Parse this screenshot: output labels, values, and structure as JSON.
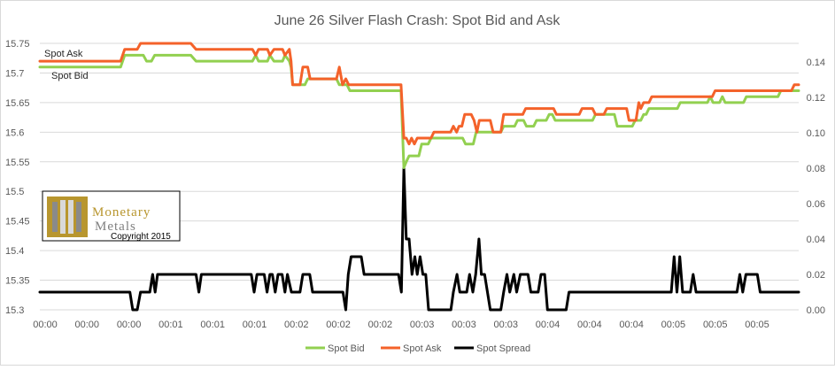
{
  "chart_data": {
    "type": "line",
    "title": "June 26 Silver Flash Crash: Spot Bid and Ask",
    "xlabel": "",
    "ylabel": "",
    "x_tick_labels": [
      "00:00",
      "00:00",
      "00:00",
      "00:01",
      "00:01",
      "00:01",
      "00:02",
      "00:02",
      "00:02",
      "00:03",
      "00:03",
      "00:03",
      "00:04",
      "00:04",
      "00:04",
      "00:05",
      "00:05",
      "00:05"
    ],
    "ylim_left": [
      15.3,
      15.75
    ],
    "yticks_left": [
      "15.3",
      "15.35",
      "15.4",
      "15.45",
      "15.5",
      "15.55",
      "15.6",
      "15.65",
      "15.7",
      "15.75"
    ],
    "ylim_right": [
      0,
      0.15
    ],
    "yticks_right": [
      "0.00",
      "0.02",
      "0.04",
      "0.06",
      "0.08",
      "0.10",
      "0.12",
      "0.14"
    ],
    "grid": true,
    "legend_position": "bottom",
    "annotations": [
      "Spot Ask",
      "Spot Bid"
    ],
    "watermark": {
      "line1": "Monetary",
      "line2": "Metals",
      "copyright": "Copyright 2015"
    },
    "series": [
      {
        "name": "Spot Bid",
        "axis": "left",
        "color": "#92d050",
        "points": [
          [
            0,
            15.71
          ],
          [
            19.9,
            15.71
          ],
          [
            20.9,
            15.73
          ],
          [
            25.5,
            15.73
          ],
          [
            26.3,
            15.72
          ],
          [
            27.5,
            15.72
          ],
          [
            28.3,
            15.73
          ],
          [
            37.2,
            15.73
          ],
          [
            38.5,
            15.72
          ],
          [
            52.4,
            15.72
          ],
          [
            53.2,
            15.73
          ],
          [
            53.9,
            15.72
          ],
          [
            56.1,
            15.72
          ],
          [
            56.7,
            15.73
          ],
          [
            57.7,
            15.72
          ],
          [
            59.8,
            15.72
          ],
          [
            60.4,
            15.73
          ],
          [
            61.5,
            15.72
          ],
          [
            61.9,
            15.71
          ],
          [
            62.3,
            15.68
          ],
          [
            65.3,
            15.68
          ],
          [
            66.0,
            15.69
          ],
          [
            73.1,
            15.69
          ],
          [
            73.8,
            15.68
          ],
          [
            75.7,
            15.68
          ],
          [
            76.4,
            15.67
          ],
          [
            89.0,
            15.67
          ],
          [
            89.7,
            15.54
          ],
          [
            90.3,
            15.55
          ],
          [
            91.0,
            15.56
          ],
          [
            93.4,
            15.56
          ],
          [
            94.1,
            15.58
          ],
          [
            95.7,
            15.58
          ],
          [
            96.4,
            15.59
          ],
          [
            104.2,
            15.59
          ],
          [
            104.9,
            15.58
          ],
          [
            106.8,
            15.58
          ],
          [
            107.5,
            15.6
          ],
          [
            113.6,
            15.6
          ],
          [
            114.3,
            15.61
          ],
          [
            117.0,
            15.61
          ],
          [
            117.7,
            15.62
          ],
          [
            119.2,
            15.62
          ],
          [
            119.9,
            15.61
          ],
          [
            121.7,
            15.61
          ],
          [
            122.4,
            15.62
          ],
          [
            124.8,
            15.62
          ],
          [
            125.5,
            15.63
          ],
          [
            126.3,
            15.63
          ],
          [
            127.0,
            15.62
          ],
          [
            136.2,
            15.62
          ],
          [
            136.9,
            15.63
          ],
          [
            141.6,
            15.63
          ],
          [
            142.3,
            15.61
          ],
          [
            146.0,
            15.61
          ],
          [
            146.7,
            15.62
          ],
          [
            148.1,
            15.62
          ],
          [
            148.8,
            15.63
          ],
          [
            149.4,
            15.63
          ],
          [
            150.1,
            15.64
          ],
          [
            157.1,
            15.64
          ],
          [
            157.8,
            15.65
          ],
          [
            164.5,
            15.65
          ],
          [
            165.2,
            15.66
          ],
          [
            165.9,
            15.65
          ],
          [
            167.5,
            15.65
          ],
          [
            168.2,
            15.66
          ],
          [
            168.9,
            15.65
          ],
          [
            173.4,
            15.65
          ],
          [
            174.1,
            15.66
          ],
          [
            181.9,
            15.66
          ],
          [
            182.6,
            15.67
          ],
          [
            187,
            15.67
          ]
        ]
      },
      {
        "name": "Spot Ask",
        "axis": "left",
        "color": "#f4622a",
        "points": [
          [
            0,
            15.72
          ],
          [
            19.9,
            15.72
          ],
          [
            20.9,
            15.74
          ],
          [
            24.0,
            15.74
          ],
          [
            24.8,
            15.75
          ],
          [
            37.2,
            15.75
          ],
          [
            38.5,
            15.74
          ],
          [
            52.4,
            15.74
          ],
          [
            53.2,
            15.73
          ],
          [
            53.9,
            15.74
          ],
          [
            56.1,
            15.74
          ],
          [
            56.7,
            15.73
          ],
          [
            57.7,
            15.74
          ],
          [
            59.8,
            15.74
          ],
          [
            60.4,
            15.73
          ],
          [
            61.5,
            15.74
          ],
          [
            61.9,
            15.72
          ],
          [
            62.3,
            15.68
          ],
          [
            64.1,
            15.68
          ],
          [
            64.8,
            15.71
          ],
          [
            66.0,
            15.71
          ],
          [
            66.6,
            15.69
          ],
          [
            73.1,
            15.69
          ],
          [
            73.8,
            15.71
          ],
          [
            74.6,
            15.68
          ],
          [
            75.4,
            15.69
          ],
          [
            76.1,
            15.68
          ],
          [
            89.0,
            15.68
          ],
          [
            89.7,
            15.59
          ],
          [
            90.3,
            15.59
          ],
          [
            91.0,
            15.58
          ],
          [
            91.6,
            15.59
          ],
          [
            92.3,
            15.58
          ],
          [
            93.0,
            15.59
          ],
          [
            96.4,
            15.59
          ],
          [
            97.1,
            15.6
          ],
          [
            101.2,
            15.6
          ],
          [
            101.9,
            15.61
          ],
          [
            102.7,
            15.6
          ],
          [
            103.3,
            15.61
          ],
          [
            104.0,
            15.61
          ],
          [
            104.7,
            15.63
          ],
          [
            106.3,
            15.63
          ],
          [
            107.0,
            15.62
          ],
          [
            107.7,
            15.6
          ],
          [
            108.3,
            15.62
          ],
          [
            111.0,
            15.62
          ],
          [
            111.7,
            15.6
          ],
          [
            113.6,
            15.6
          ],
          [
            114.3,
            15.63
          ],
          [
            119.0,
            15.63
          ],
          [
            119.7,
            15.64
          ],
          [
            126.6,
            15.64
          ],
          [
            127.3,
            15.63
          ],
          [
            132.9,
            15.63
          ],
          [
            133.6,
            15.64
          ],
          [
            136.2,
            15.64
          ],
          [
            136.9,
            15.63
          ],
          [
            139.0,
            15.63
          ],
          [
            139.7,
            15.64
          ],
          [
            143.9,
            15.64
          ],
          [
            144.6,
            15.64
          ],
          [
            145.2,
            15.62
          ],
          [
            146.9,
            15.62
          ],
          [
            147.6,
            15.65
          ],
          [
            148.1,
            15.64
          ],
          [
            148.8,
            15.65
          ],
          [
            150.1,
            15.65
          ],
          [
            150.8,
            15.66
          ],
          [
            165.7,
            15.66
          ],
          [
            166.4,
            15.67
          ],
          [
            185.2,
            15.67
          ],
          [
            185.9,
            15.68
          ],
          [
            187,
            15.68
          ]
        ]
      },
      {
        "name": "Spot Spread",
        "axis": "right",
        "color": "#000000",
        "points": [
          [
            0,
            0.01
          ],
          [
            22.2,
            0.01
          ],
          [
            22.9,
            0
          ],
          [
            24.0,
            0
          ],
          [
            24.8,
            0.01
          ],
          [
            27.1,
            0.01
          ],
          [
            27.8,
            0.02
          ],
          [
            28.4,
            0.01
          ],
          [
            29.0,
            0.02
          ],
          [
            38.5,
            0.02
          ],
          [
            39.2,
            0.01
          ],
          [
            39.8,
            0.02
          ],
          [
            52.1,
            0.02
          ],
          [
            52.8,
            0.01
          ],
          [
            53.5,
            0.02
          ],
          [
            55.3,
            0.02
          ],
          [
            56.0,
            0.01
          ],
          [
            56.7,
            0.02
          ],
          [
            57.3,
            0.02
          ],
          [
            58.0,
            0.01
          ],
          [
            58.7,
            0.02
          ],
          [
            59.7,
            0.02
          ],
          [
            60.4,
            0.01
          ],
          [
            61.0,
            0.02
          ],
          [
            62.0,
            0.01
          ],
          [
            64.1,
            0.01
          ],
          [
            64.8,
            0.02
          ],
          [
            66.5,
            0.02
          ],
          [
            67.2,
            0.01
          ],
          [
            74.7,
            0.01
          ],
          [
            75.4,
            0
          ],
          [
            76.0,
            0.02
          ],
          [
            76.7,
            0.03
          ],
          [
            79.2,
            0.03
          ],
          [
            79.9,
            0.02
          ],
          [
            88.4,
            0.02
          ],
          [
            89.1,
            0.01
          ],
          [
            89.7,
            0.08
          ],
          [
            90.3,
            0.04
          ],
          [
            91.0,
            0.04
          ],
          [
            91.7,
            0.02
          ],
          [
            92.4,
            0.03
          ],
          [
            93.0,
            0.02
          ],
          [
            93.7,
            0.03
          ],
          [
            94.4,
            0.02
          ],
          [
            95.1,
            0.02
          ],
          [
            95.8,
            0
          ],
          [
            101.3,
            0
          ],
          [
            101.9,
            0.01
          ],
          [
            102.8,
            0.02
          ],
          [
            103.5,
            0.01
          ],
          [
            105.2,
            0.01
          ],
          [
            105.9,
            0.02
          ],
          [
            106.7,
            0.01
          ],
          [
            107.4,
            0.02
          ],
          [
            108.2,
            0.04
          ],
          [
            108.8,
            0.02
          ],
          [
            109.6,
            0.02
          ],
          [
            110.3,
            0.01
          ],
          [
            111.0,
            0
          ],
          [
            113.6,
            0
          ],
          [
            114.3,
            0.01
          ],
          [
            115.1,
            0.02
          ],
          [
            115.8,
            0.01
          ],
          [
            116.8,
            0.02
          ],
          [
            117.5,
            0.01
          ],
          [
            118.4,
            0.02
          ],
          [
            120.3,
            0.02
          ],
          [
            121.0,
            0.01
          ],
          [
            122.8,
            0.01
          ],
          [
            123.5,
            0.02
          ],
          [
            124.4,
            0.02
          ],
          [
            125.1,
            0
          ],
          [
            129.7,
            0
          ],
          [
            130.4,
            0.01
          ],
          [
            155.6,
            0.01
          ],
          [
            156.3,
            0.03
          ],
          [
            157.0,
            0.01
          ],
          [
            157.7,
            0.03
          ],
          [
            158.4,
            0.01
          ],
          [
            160.3,
            0.01
          ],
          [
            161.0,
            0.02
          ],
          [
            161.7,
            0.01
          ],
          [
            171.8,
            0.01
          ],
          [
            172.5,
            0.02
          ],
          [
            173.2,
            0.01
          ],
          [
            174.0,
            0.02
          ],
          [
            176.8,
            0.02
          ],
          [
            177.5,
            0.01
          ],
          [
            187,
            0.01
          ]
        ]
      }
    ]
  }
}
